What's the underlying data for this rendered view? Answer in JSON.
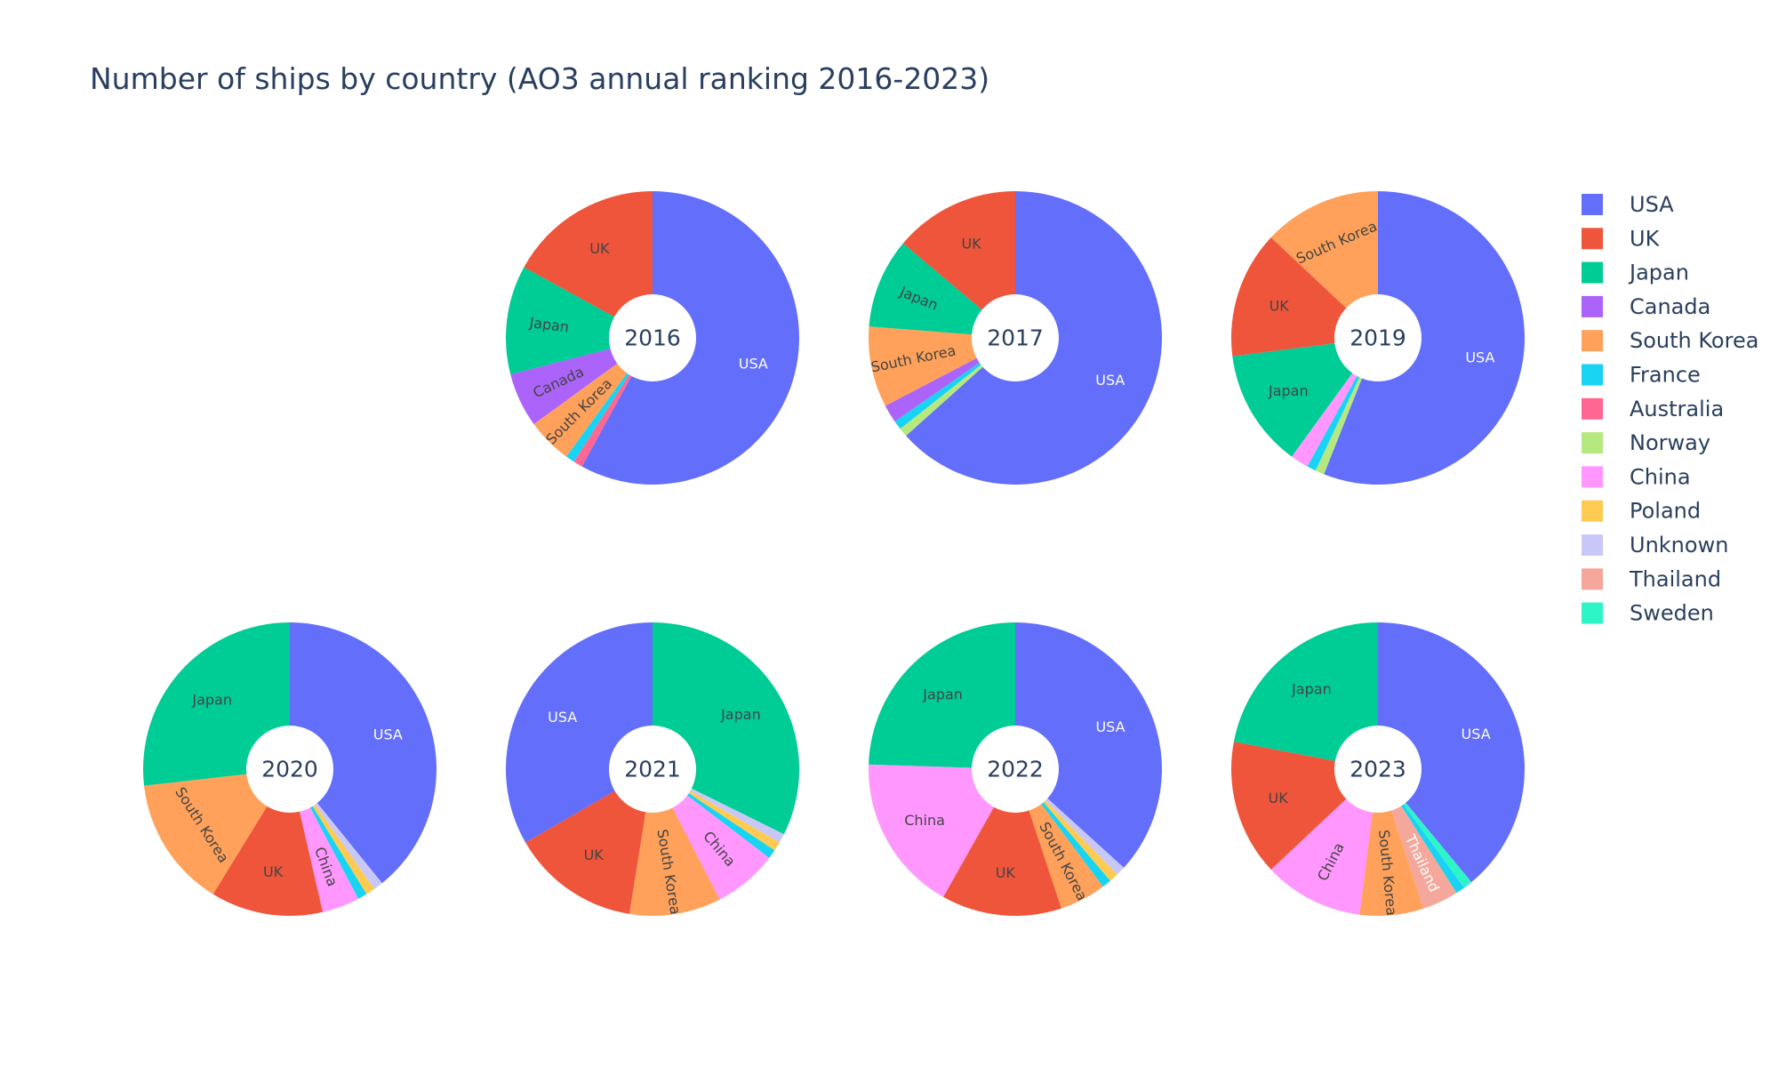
{
  "chart_data": {
    "type": "pie",
    "title": "Number of ships by country (AO3 annual ranking 2016-2023)",
    "legend_position": "right",
    "hole": true,
    "legend": [
      "USA",
      "UK",
      "Japan",
      "Canada",
      "South Korea",
      "France",
      "Australia",
      "Norway",
      "China",
      "Poland",
      "Unknown",
      "Thailand",
      "Sweden"
    ],
    "colors": {
      "USA": "#636efa",
      "UK": "#ef553b",
      "Japan": "#00cc96",
      "Canada": "#ab63fa",
      "South Korea": "#ffa15a",
      "France": "#19d3f3",
      "Australia": "#ff6692",
      "Norway": "#b6e880",
      "China": "#ff97ff",
      "Poland": "#fecb52",
      "Unknown": "#c8c8f8",
      "Thailand": "#f4a79a",
      "Sweden": "#2ef5c8"
    },
    "dark_text_labels": [
      "UK",
      "Japan",
      "Canada",
      "South Korea",
      "China"
    ],
    "pies": [
      {
        "label": "2016",
        "slices": [
          {
            "name": "USA",
            "value": 58
          },
          {
            "name": "Australia",
            "value": 1
          },
          {
            "name": "France",
            "value": 1
          },
          {
            "name": "South Korea",
            "value": 5
          },
          {
            "name": "Canada",
            "value": 6
          },
          {
            "name": "Japan",
            "value": 12
          },
          {
            "name": "UK",
            "value": 17
          }
        ]
      },
      {
        "label": "2017",
        "slices": [
          {
            "name": "USA",
            "value": 64
          },
          {
            "name": "Norway",
            "value": 1
          },
          {
            "name": "France",
            "value": 1
          },
          {
            "name": "Canada",
            "value": 2
          },
          {
            "name": "South Korea",
            "value": 9
          },
          {
            "name": "Japan",
            "value": 10
          },
          {
            "name": "UK",
            "value": 14
          }
        ]
      },
      {
        "label": "2019",
        "slices": [
          {
            "name": "USA",
            "value": 56
          },
          {
            "name": "Norway",
            "value": 1
          },
          {
            "name": "France",
            "value": 1
          },
          {
            "name": "China",
            "value": 2
          },
          {
            "name": "Japan",
            "value": 13
          },
          {
            "name": "UK",
            "value": 14
          },
          {
            "name": "South Korea",
            "value": 13
          }
        ]
      },
      {
        "label": "2020",
        "slices": [
          {
            "name": "USA",
            "value": 38
          },
          {
            "name": "Unknown",
            "value": 1
          },
          {
            "name": "Poland",
            "value": 1
          },
          {
            "name": "France",
            "value": 1
          },
          {
            "name": "China",
            "value": 4
          },
          {
            "name": "UK",
            "value": 12
          },
          {
            "name": "South Korea",
            "value": 14
          },
          {
            "name": "Japan",
            "value": 26
          }
        ]
      },
      {
        "label": "2021",
        "slices": [
          {
            "name": "Japan",
            "value": 32
          },
          {
            "name": "Unknown",
            "value": 1
          },
          {
            "name": "Poland",
            "value": 1
          },
          {
            "name": "France",
            "value": 1
          },
          {
            "name": "China",
            "value": 7
          },
          {
            "name": "South Korea",
            "value": 10
          },
          {
            "name": "UK",
            "value": 14
          },
          {
            "name": "USA",
            "value": 33
          }
        ]
      },
      {
        "label": "2022",
        "slices": [
          {
            "name": "USA",
            "value": 36
          },
          {
            "name": "Unknown",
            "value": 1
          },
          {
            "name": "Poland",
            "value": 1
          },
          {
            "name": "France",
            "value": 1
          },
          {
            "name": "South Korea",
            "value": 5
          },
          {
            "name": "UK",
            "value": 13
          },
          {
            "name": "China",
            "value": 17
          },
          {
            "name": "Japan",
            "value": 24
          }
        ]
      },
      {
        "label": "2023",
        "slices": [
          {
            "name": "USA",
            "value": 39
          },
          {
            "name": "Sweden",
            "value": 1
          },
          {
            "name": "France",
            "value": 1
          },
          {
            "name": "Thailand",
            "value": 4
          },
          {
            "name": "South Korea",
            "value": 7
          },
          {
            "name": "China",
            "value": 11
          },
          {
            "name": "UK",
            "value": 15
          },
          {
            "name": "Japan",
            "value": 22
          }
        ]
      }
    ]
  }
}
